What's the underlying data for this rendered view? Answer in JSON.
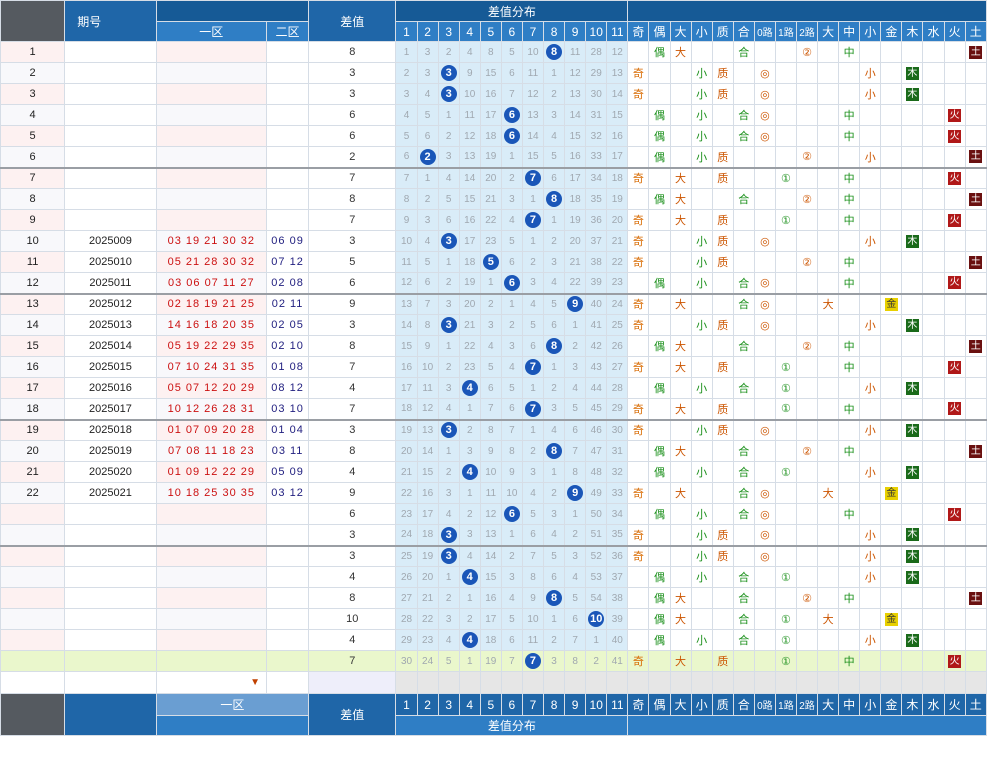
{
  "header": {
    "period_label": "期号",
    "zone1_label": "一区",
    "zone2_label": "二区",
    "diff_label": "差值",
    "dist_label": "差值分布",
    "dist_cols": [
      "1",
      "2",
      "3",
      "4",
      "5",
      "6",
      "7",
      "8",
      "9",
      "10",
      "11"
    ],
    "attr_cols": [
      "奇",
      "偶",
      "大",
      "小",
      "质",
      "合",
      "0路",
      "1路",
      "2路",
      "大",
      "中",
      "小",
      "金",
      "木",
      "水",
      "火",
      "土"
    ]
  },
  "footer": {
    "zone1_label": "一区",
    "diff_label": "差值",
    "dist_label": "差值分布"
  },
  "rows": [
    {
      "no": "1",
      "date": "",
      "z1": "",
      "z2": "",
      "diff": "8"
    },
    {
      "no": "2",
      "date": "",
      "z1": "",
      "z2": "",
      "diff": "3"
    },
    {
      "no": "3",
      "date": "",
      "z1": "",
      "z2": "",
      "diff": "3"
    },
    {
      "no": "4",
      "date": "",
      "z1": "",
      "z2": "",
      "diff": "6"
    },
    {
      "no": "5",
      "date": "",
      "z1": "",
      "z2": "",
      "diff": "6"
    },
    {
      "no": "6",
      "date": "",
      "z1": "",
      "z2": "",
      "diff": "2"
    },
    {
      "no": "7",
      "date": "",
      "z1": "",
      "z2": "",
      "diff": "7"
    },
    {
      "no": "8",
      "date": "",
      "z1": "",
      "z2": "",
      "diff": "8"
    },
    {
      "no": "9",
      "date": "",
      "z1": "",
      "z2": "",
      "diff": "7"
    },
    {
      "no": "10",
      "date": "2025009",
      "z1": "03 19 21 30 32",
      "z2": "06 09",
      "diff": "3"
    },
    {
      "no": "11",
      "date": "2025010",
      "z1": "05 21 28 30 32",
      "z2": "07 12",
      "diff": "5"
    },
    {
      "no": "12",
      "date": "2025011",
      "z1": "03 06 07 11 27",
      "z2": "02 08",
      "diff": "6"
    },
    {
      "no": "13",
      "date": "2025012",
      "z1": "02 18 19 21 25",
      "z2": "02 11",
      "diff": "9"
    },
    {
      "no": "14",
      "date": "2025013",
      "z1": "14 16 18 20 35",
      "z2": "02 05",
      "diff": "3"
    },
    {
      "no": "15",
      "date": "2025014",
      "z1": "05 19 22 29 35",
      "z2": "02 10",
      "diff": "8"
    },
    {
      "no": "16",
      "date": "2025015",
      "z1": "07 10 24 31 35",
      "z2": "01 08",
      "diff": "7"
    },
    {
      "no": "17",
      "date": "2025016",
      "z1": "05 07 12 20 29",
      "z2": "08 12",
      "diff": "4"
    },
    {
      "no": "18",
      "date": "2025017",
      "z1": "10 12 26 28 31",
      "z2": "03 10",
      "diff": "7"
    },
    {
      "no": "19",
      "date": "2025018",
      "z1": "01 07 09 20 28",
      "z2": "01 04",
      "diff": "3"
    },
    {
      "no": "20",
      "date": "2025019",
      "z1": "07 08 11 18 23",
      "z2": "03 11",
      "diff": "8"
    },
    {
      "no": "21",
      "date": "2025020",
      "z1": "01 09 12 22 29",
      "z2": "05 09",
      "diff": "4"
    },
    {
      "no": "22",
      "date": "2025021",
      "z1": "10 18 25 30 35",
      "z2": "03 12",
      "diff": "9"
    },
    {
      "no": "",
      "date": "",
      "z1": "",
      "z2": "",
      "diff": "6"
    },
    {
      "no": "",
      "date": "",
      "z1": "",
      "z2": "",
      "diff": "3"
    },
    {
      "no": "",
      "date": "",
      "z1": "",
      "z2": "",
      "diff": "3"
    },
    {
      "no": "",
      "date": "",
      "z1": "",
      "z2": "",
      "diff": "4"
    },
    {
      "no": "",
      "date": "",
      "z1": "",
      "z2": "",
      "diff": "8"
    },
    {
      "no": "",
      "date": "",
      "z1": "",
      "z2": "",
      "diff": "10"
    },
    {
      "no": "",
      "date": "",
      "z1": "",
      "z2": "",
      "diff": "4"
    },
    {
      "no": "",
      "date": "",
      "z1": "",
      "z2": "",
      "diff": "7"
    }
  ],
  "dist": [
    [
      "1",
      "3",
      "2",
      "4",
      "8",
      "5",
      "10",
      "8",
      "11",
      "28",
      "12"
    ],
    [
      "2",
      "3",
      "3",
      "9",
      "15",
      "6",
      "11",
      "1",
      "12",
      "29",
      "13"
    ],
    [
      "3",
      "4",
      "3",
      "10",
      "16",
      "7",
      "12",
      "2",
      "13",
      "30",
      "14"
    ],
    [
      "4",
      "5",
      "1",
      "11",
      "17",
      "6",
      "13",
      "3",
      "14",
      "31",
      "15"
    ],
    [
      "5",
      "6",
      "2",
      "12",
      "18",
      "6",
      "14",
      "4",
      "15",
      "32",
      "16"
    ],
    [
      "6",
      "2",
      "3",
      "13",
      "19",
      "1",
      "15",
      "5",
      "16",
      "33",
      "17"
    ],
    [
      "7",
      "1",
      "4",
      "14",
      "20",
      "2",
      "7",
      "6",
      "17",
      "34",
      "18"
    ],
    [
      "8",
      "2",
      "5",
      "15",
      "21",
      "3",
      "1",
      "8",
      "18",
      "35",
      "19"
    ],
    [
      "9",
      "3",
      "6",
      "16",
      "22",
      "4",
      "7",
      "1",
      "19",
      "36",
      "20"
    ],
    [
      "10",
      "4",
      "3",
      "17",
      "23",
      "5",
      "1",
      "2",
      "20",
      "37",
      "21"
    ],
    [
      "11",
      "5",
      "1",
      "18",
      "5",
      "6",
      "2",
      "3",
      "21",
      "38",
      "22"
    ],
    [
      "12",
      "6",
      "2",
      "19",
      "1",
      "6",
      "3",
      "4",
      "22",
      "39",
      "23"
    ],
    [
      "13",
      "7",
      "3",
      "20",
      "2",
      "1",
      "4",
      "5",
      "9",
      "40",
      "24"
    ],
    [
      "14",
      "8",
      "3",
      "21",
      "3",
      "2",
      "5",
      "6",
      "1",
      "41",
      "25"
    ],
    [
      "15",
      "9",
      "1",
      "22",
      "4",
      "3",
      "6",
      "8",
      "2",
      "42",
      "26"
    ],
    [
      "16",
      "10",
      "2",
      "23",
      "5",
      "4",
      "7",
      "1",
      "3",
      "43",
      "27"
    ],
    [
      "17",
      "11",
      "3",
      "4",
      "6",
      "5",
      "1",
      "2",
      "4",
      "44",
      "28"
    ],
    [
      "18",
      "12",
      "4",
      "1",
      "7",
      "6",
      "7",
      "3",
      "5",
      "45",
      "29"
    ],
    [
      "19",
      "13",
      "3",
      "2",
      "8",
      "7",
      "1",
      "4",
      "6",
      "46",
      "30"
    ],
    [
      "20",
      "14",
      "1",
      "3",
      "9",
      "8",
      "2",
      "8",
      "7",
      "47",
      "31"
    ],
    [
      "21",
      "15",
      "2",
      "4",
      "10",
      "9",
      "3",
      "1",
      "8",
      "48",
      "32"
    ],
    [
      "22",
      "16",
      "3",
      "1",
      "11",
      "10",
      "4",
      "2",
      "9",
      "49",
      "33"
    ],
    [
      "23",
      "17",
      "4",
      "2",
      "12",
      "6",
      "5",
      "3",
      "1",
      "50",
      "34"
    ],
    [
      "24",
      "18",
      "3",
      "3",
      "13",
      "1",
      "6",
      "4",
      "2",
      "51",
      "35"
    ],
    [
      "25",
      "19",
      "3",
      "4",
      "14",
      "2",
      "7",
      "5",
      "3",
      "52",
      "36"
    ],
    [
      "26",
      "20",
      "1",
      "4",
      "15",
      "3",
      "8",
      "6",
      "4",
      "53",
      "37"
    ],
    [
      "27",
      "21",
      "2",
      "1",
      "16",
      "4",
      "9",
      "8",
      "5",
      "54",
      "38"
    ],
    [
      "28",
      "22",
      "3",
      "2",
      "17",
      "5",
      "10",
      "1",
      "6",
      "10",
      "39"
    ],
    [
      "29",
      "23",
      "4",
      "4",
      "18",
      "6",
      "11",
      "2",
      "7",
      "1",
      "40"
    ],
    [
      "30",
      "24",
      "5",
      "1",
      "19",
      "7",
      "7",
      "3",
      "8",
      "2",
      "41"
    ]
  ],
  "attrs": [
    {
      "oe": "偶",
      "sz": "大",
      "pc": "合",
      "r": "2",
      "mid": "中",
      "el": "土"
    },
    {
      "oe": "奇",
      "sz": "小",
      "pc": "质",
      "r": "0",
      "mid": "小",
      "el": "木"
    },
    {
      "oe": "奇",
      "sz": "小",
      "pc": "质",
      "r": "0",
      "mid": "小",
      "el": "木"
    },
    {
      "oe": "偶",
      "sz": "小",
      "pc": "合",
      "r": "0",
      "mid": "中",
      "el": "火"
    },
    {
      "oe": "偶",
      "sz": "小",
      "pc": "合",
      "r": "0",
      "mid": "中",
      "el": "火"
    },
    {
      "oe": "偶",
      "sz": "小",
      "pc": "质",
      "r": "2",
      "mid": "小",
      "el": "土"
    },
    {
      "oe": "奇",
      "sz": "大",
      "pc": "质",
      "r": "1",
      "mid": "中",
      "el": "火"
    },
    {
      "oe": "偶",
      "sz": "大",
      "pc": "合",
      "r": "2",
      "mid": "中",
      "el": "土"
    },
    {
      "oe": "奇",
      "sz": "大",
      "pc": "质",
      "r": "1",
      "mid": "中",
      "el": "火"
    },
    {
      "oe": "奇",
      "sz": "小",
      "pc": "质",
      "r": "0",
      "mid": "小",
      "el": "木"
    },
    {
      "oe": "奇",
      "sz": "小",
      "pc": "质",
      "r": "2",
      "mid": "中",
      "el": "土"
    },
    {
      "oe": "偶",
      "sz": "小",
      "pc": "合",
      "r": "0",
      "mid": "中",
      "el": "火"
    },
    {
      "oe": "奇",
      "sz": "大",
      "pc": "合",
      "r": "0",
      "mid": "大",
      "el": "金"
    },
    {
      "oe": "奇",
      "sz": "小",
      "pc": "质",
      "r": "0",
      "mid": "小",
      "el": "木"
    },
    {
      "oe": "偶",
      "sz": "大",
      "pc": "合",
      "r": "2",
      "mid": "中",
      "el": "土"
    },
    {
      "oe": "奇",
      "sz": "大",
      "pc": "质",
      "r": "1",
      "mid": "中",
      "el": "火"
    },
    {
      "oe": "偶",
      "sz": "小",
      "pc": "合",
      "r": "1",
      "mid": "小",
      "el": "木"
    },
    {
      "oe": "奇",
      "sz": "大",
      "pc": "质",
      "r": "1",
      "mid": "中",
      "el": "火"
    },
    {
      "oe": "奇",
      "sz": "小",
      "pc": "质",
      "r": "0",
      "mid": "小",
      "el": "木"
    },
    {
      "oe": "偶",
      "sz": "大",
      "pc": "合",
      "r": "2",
      "mid": "中",
      "el": "土"
    },
    {
      "oe": "偶",
      "sz": "小",
      "pc": "合",
      "r": "1",
      "mid": "小",
      "el": "木"
    },
    {
      "oe": "奇",
      "sz": "大",
      "pc": "合",
      "r": "0",
      "mid": "大",
      "el": "金"
    },
    {
      "oe": "偶",
      "sz": "小",
      "pc": "合",
      "r": "0",
      "mid": "中",
      "el": "火"
    },
    {
      "oe": "奇",
      "sz": "小",
      "pc": "质",
      "r": "0",
      "mid": "小",
      "el": "木"
    },
    {
      "oe": "奇",
      "sz": "小",
      "pc": "质",
      "r": "0",
      "mid": "小",
      "el": "木"
    },
    {
      "oe": "偶",
      "sz": "小",
      "pc": "合",
      "r": "1",
      "mid": "小",
      "el": "木"
    },
    {
      "oe": "偶",
      "sz": "大",
      "pc": "合",
      "r": "2",
      "mid": "中",
      "el": "土"
    },
    {
      "oe": "偶",
      "sz": "大",
      "pc": "合",
      "r": "1",
      "mid": "大",
      "el": "金"
    },
    {
      "oe": "偶",
      "sz": "小",
      "pc": "合",
      "r": "1",
      "mid": "小",
      "el": "木"
    },
    {
      "oe": "奇",
      "sz": "大",
      "pc": "质",
      "r": "1",
      "mid": "中",
      "el": "火"
    }
  ],
  "ring_glyphs": {
    "0": "◎",
    "1": "①",
    "2": "②"
  },
  "colors": {
    "header_blue": "#1f66a8",
    "ball_blue": "#1a56b8",
    "dist_bg": "#d9ecf8",
    "fire": "#b01818",
    "wood": "#1a6a1a",
    "metal": "#e8d000",
    "earth": "#6a1010"
  }
}
